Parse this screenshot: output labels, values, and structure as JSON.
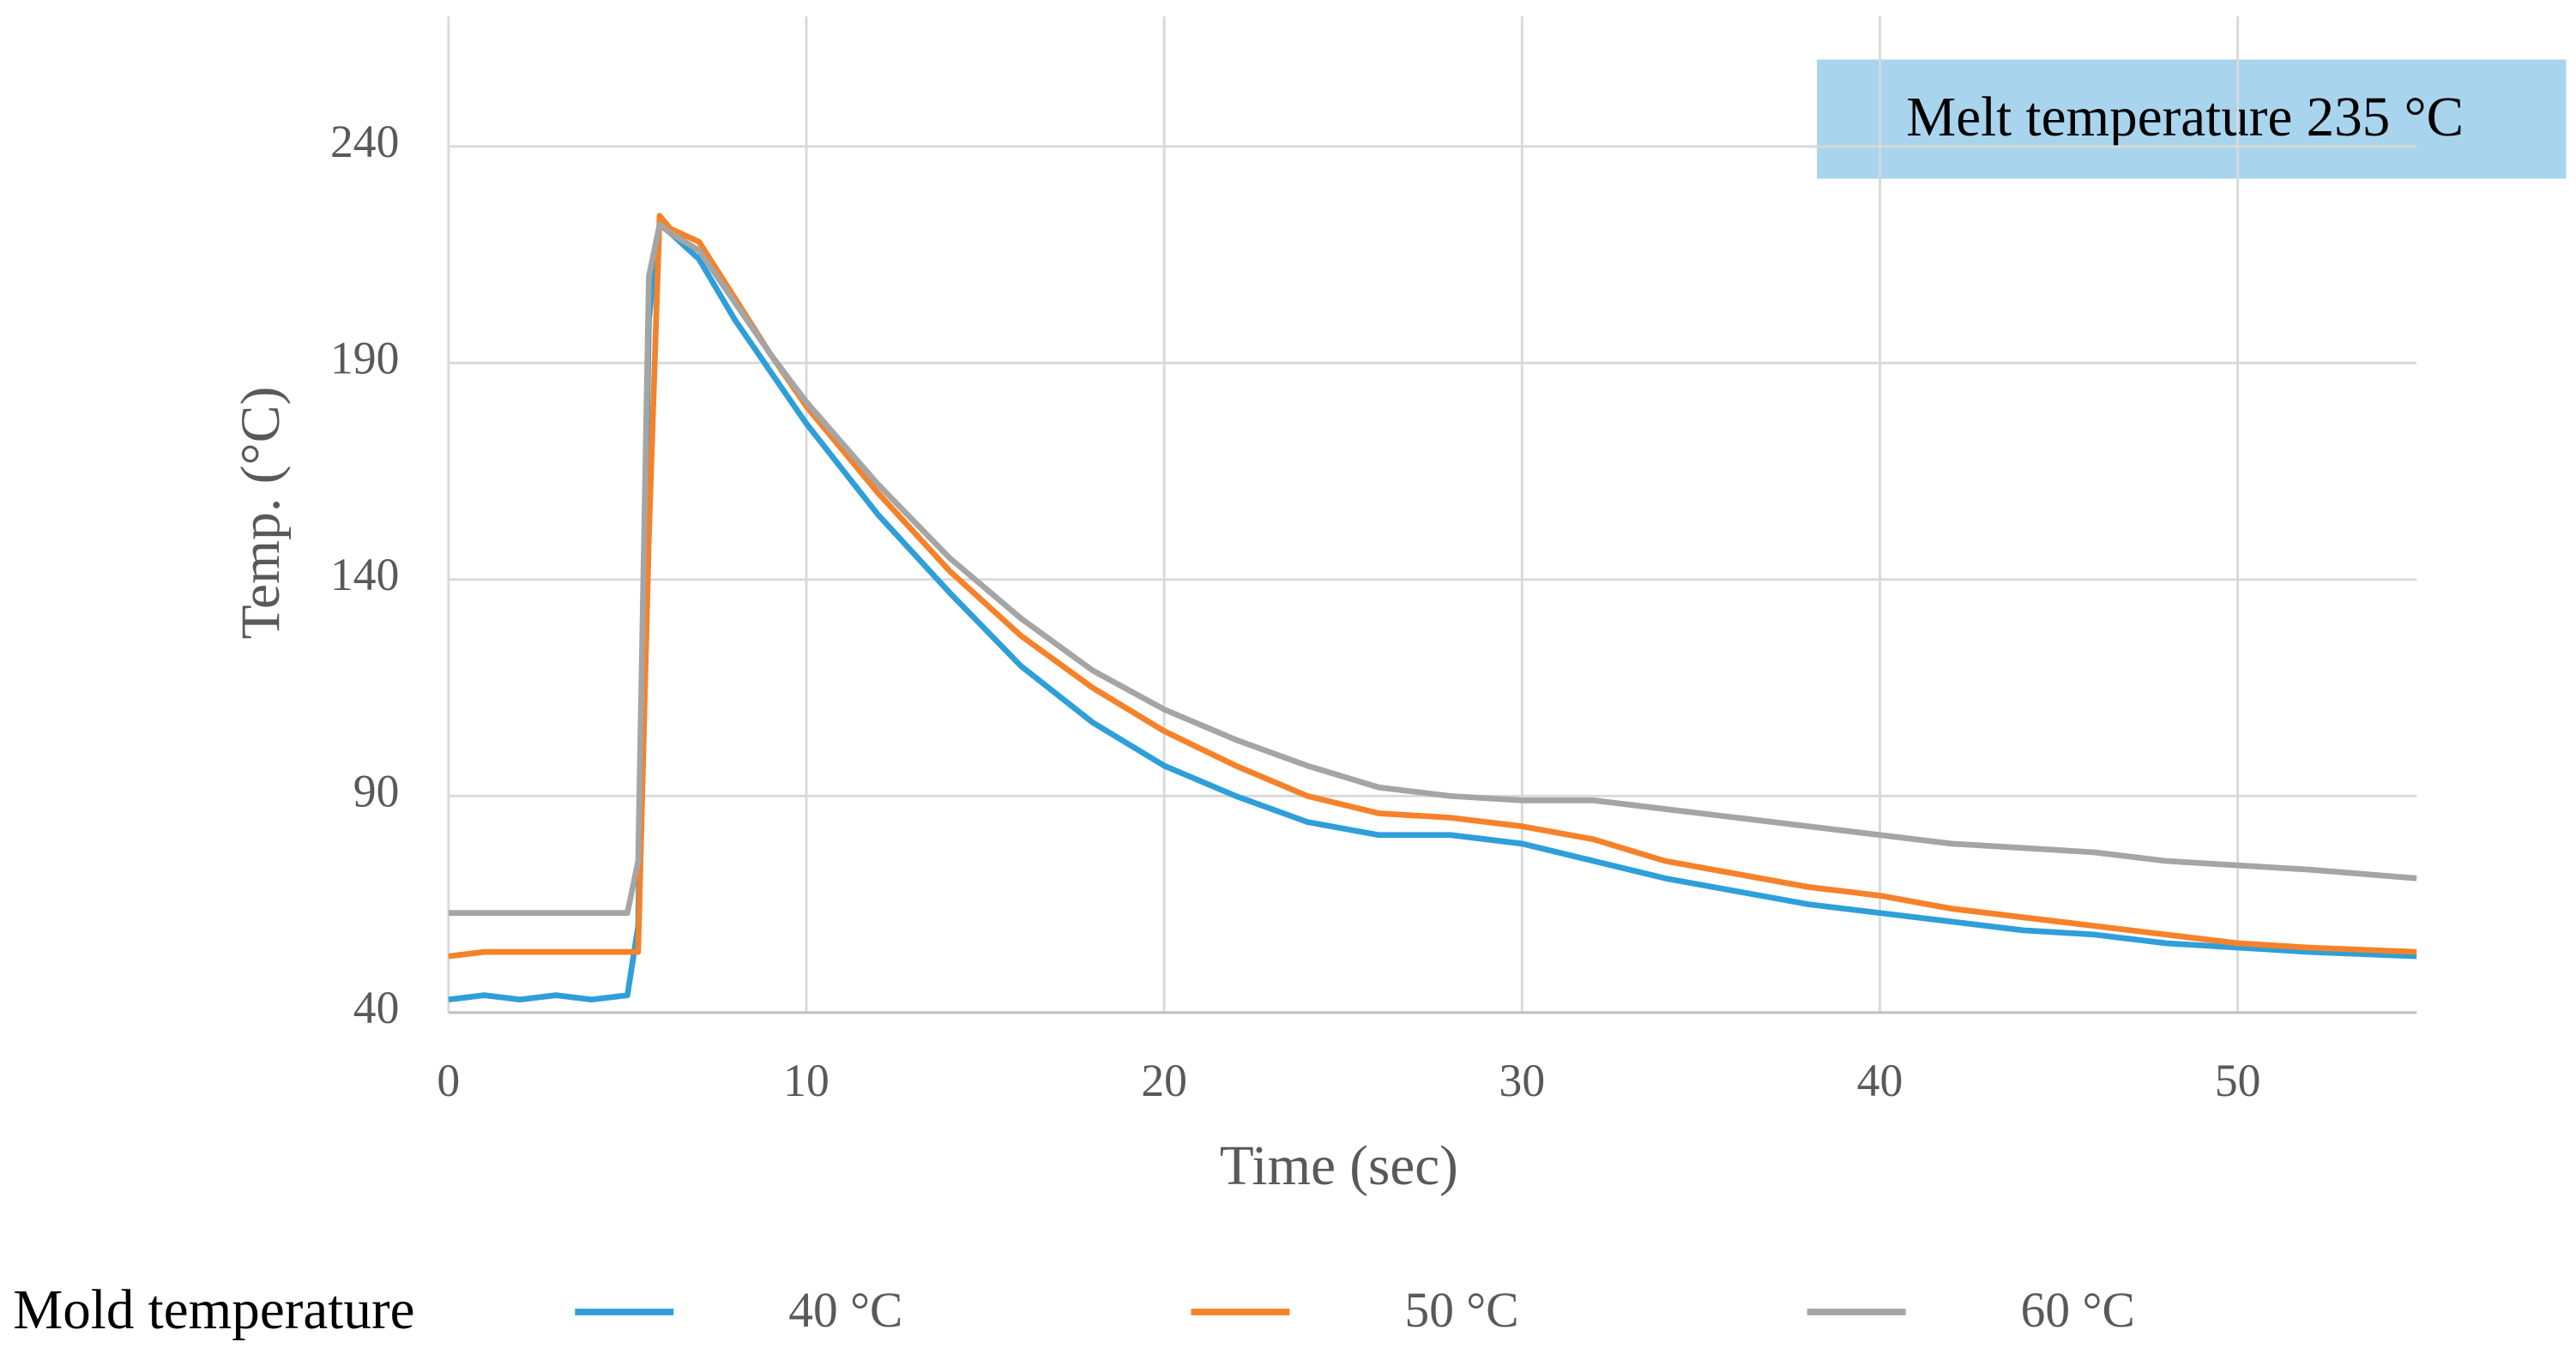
{
  "chart_data": {
    "type": "line",
    "xlabel": "Time (sec)",
    "ylabel": "Temp. (°C)",
    "annotation": "Melt temperature  235 °C",
    "legend_title": "Mold temperature",
    "x": [
      0,
      1,
      2,
      3,
      4,
      5,
      5.3,
      5.6,
      5.9,
      6.2,
      7,
      8,
      9,
      10,
      12,
      14,
      16,
      18,
      20,
      22,
      24,
      26,
      28,
      30,
      32,
      34,
      36,
      38,
      40,
      42,
      44,
      46,
      48,
      50,
      52,
      55
    ],
    "series": [
      {
        "name": "40 °C",
        "color": "#2e9fd9",
        "values": [
          43,
          44,
          43,
          44,
          43,
          44,
          60,
          200,
          222,
          220,
          214,
          200,
          188,
          176,
          155,
          137,
          120,
          107,
          97,
          90,
          84,
          81,
          81,
          79,
          75,
          71,
          68,
          65,
          63,
          61,
          59,
          58,
          56,
          55,
          54,
          53
        ]
      },
      {
        "name": "50 °C",
        "color": "#f5822a",
        "values": [
          53,
          54,
          54,
          54,
          54,
          54,
          54,
          150,
          224,
          221,
          218,
          205,
          192,
          180,
          160,
          142,
          127,
          115,
          105,
          97,
          90,
          86,
          85,
          83,
          80,
          75,
          72,
          69,
          67,
          64,
          62,
          60,
          58,
          56,
          55,
          54
        ]
      },
      {
        "name": "60 °C",
        "color": "#a5a5a5",
        "values": [
          63,
          63,
          63,
          63,
          63,
          63,
          75,
          210,
          222,
          220,
          216,
          204,
          192,
          181,
          162,
          145,
          131,
          119,
          110,
          103,
          97,
          92,
          90,
          89,
          89,
          87,
          85,
          83,
          81,
          79,
          78,
          77,
          75,
          74,
          73,
          71
        ]
      }
    ],
    "xlim": [
      0,
      55
    ],
    "xticks": [
      0,
      10,
      20,
      30,
      40,
      50
    ],
    "ylim": [
      40,
      270
    ],
    "yticks": [
      40,
      90,
      140,
      190,
      240
    ],
    "grid": true
  }
}
